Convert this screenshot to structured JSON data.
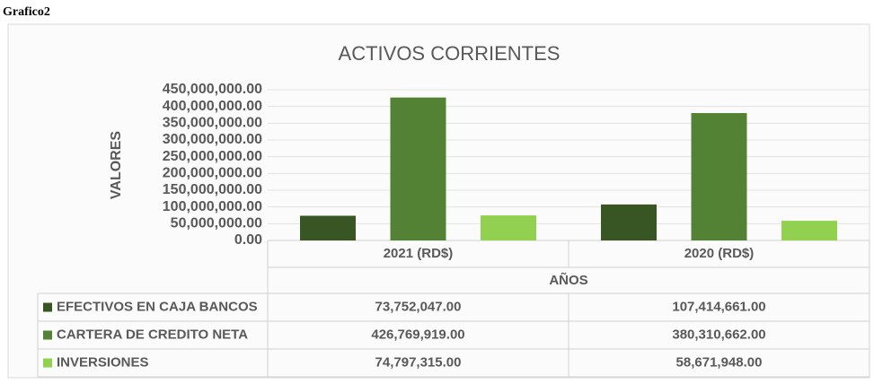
{
  "page_title": "Grafico2",
  "chart_data": {
    "type": "bar",
    "title": "ACTIVOS CORRIENTES",
    "ylabel": "VALORES",
    "xlabel": "AÑOS",
    "categories": [
      "2021 (RD$)",
      "2020 (RD$)"
    ],
    "series": [
      {
        "name": "EFECTIVOS EN CAJA BANCOS",
        "color": "#375623",
        "values": [
          73752047,
          107414661
        ],
        "value_labels": [
          "73,752,047.00",
          "107,414,661.00"
        ]
      },
      {
        "name": "CARTERA DE CREDITO NETA",
        "color": "#548235",
        "values": [
          426769919,
          380310662
        ],
        "value_labels": [
          "426,769,919.00",
          "380,310,662.00"
        ]
      },
      {
        "name": "INVERSIONES",
        "color": "#92d050",
        "values": [
          74797315,
          58671948
        ],
        "value_labels": [
          "74,797,315.00",
          "58,671,948.00"
        ]
      }
    ],
    "ylim": [
      0,
      450000000
    ],
    "yticks": [
      {
        "value": 0,
        "label": "0.00"
      },
      {
        "value": 50000000,
        "label": "50,000,000.00"
      },
      {
        "value": 100000000,
        "label": "100,000,000.00"
      },
      {
        "value": 150000000,
        "label": "150,000,000.00"
      },
      {
        "value": 200000000,
        "label": "200,000,000.00"
      },
      {
        "value": 250000000,
        "label": "250,000,000.00"
      },
      {
        "value": 300000000,
        "label": "300,000,000.00"
      },
      {
        "value": 350000000,
        "label": "350,000,000.00"
      },
      {
        "value": 400000000,
        "label": "400,000,000.00"
      },
      {
        "value": 450000000,
        "label": "450,000,000.00"
      }
    ],
    "grid": true
  }
}
